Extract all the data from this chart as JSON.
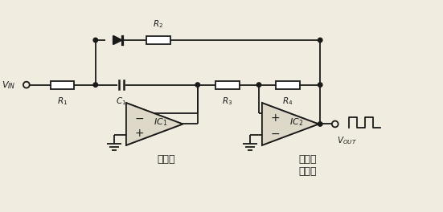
{
  "bg_color": "#f0ece0",
  "line_color": "#1a1a1a",
  "lw": 1.3,
  "opamp_fill": "#ddd8c8",
  "vin_label": "V_{IN}",
  "vout_label": "V_{OUT}",
  "r1_label": "R_1",
  "r2_label": "R_2",
  "r3_label": "R_3",
  "r4_label": "R_4",
  "c1_label": "C_1",
  "ic1_label": "IC_1",
  "ic2_label": "IC_2",
  "ic1_sublabel": "积分器",
  "ic2_sublabel": "施密特\n触发器"
}
